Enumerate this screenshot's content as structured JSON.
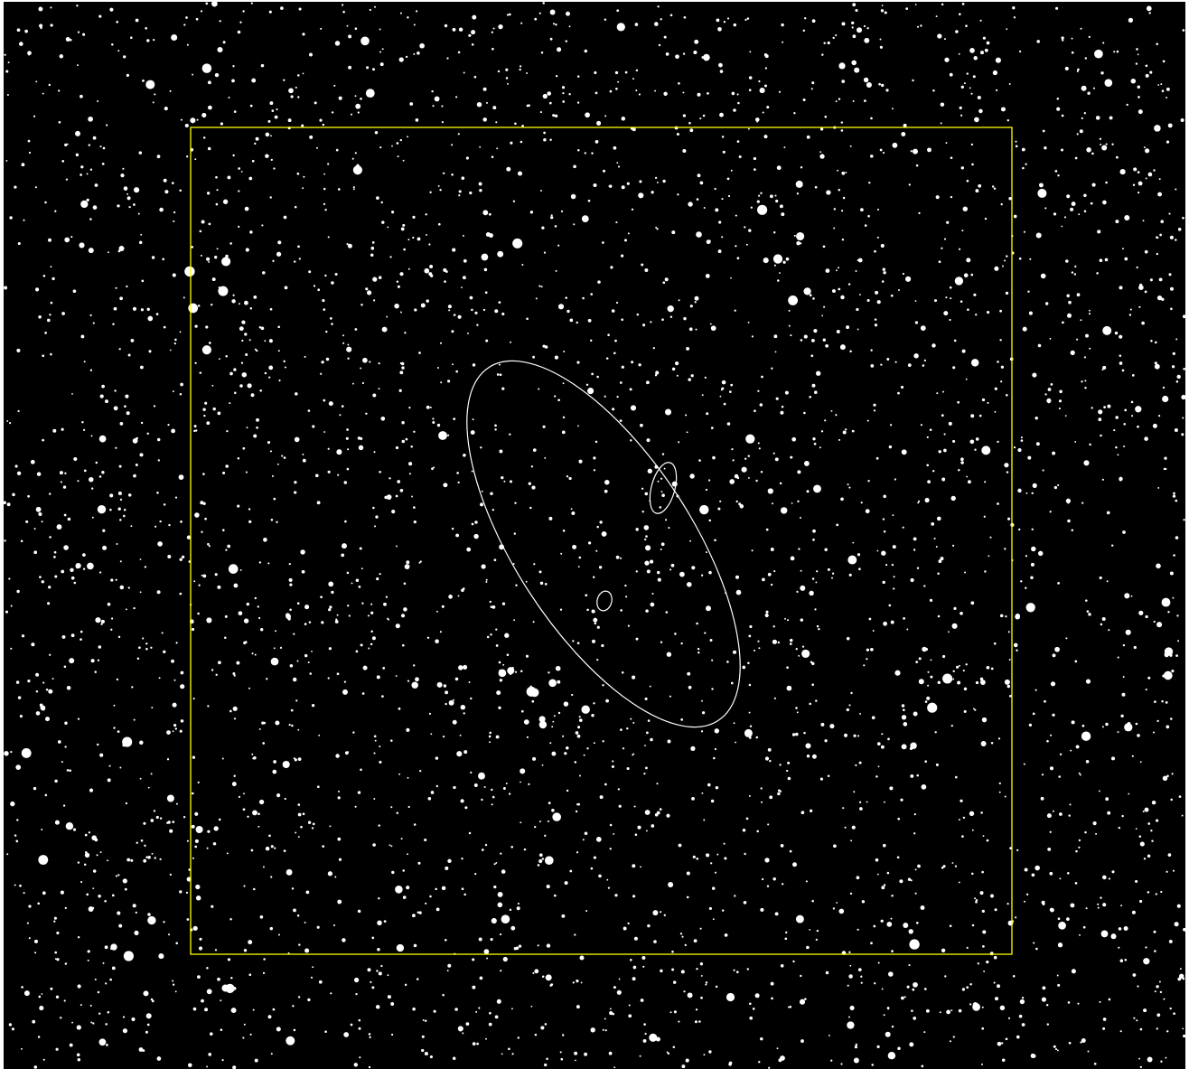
{
  "image": {
    "kind": "star field sky chart",
    "background_color": "#000000",
    "frame_color": "#ffffff",
    "star_color": "#ffffff",
    "field_of_view_box_color": "#ffff00",
    "galaxy_outline_color": "#ffffff",
    "shows_text": false
  },
  "overlays": [
    {
      "type": "field-of-view-rectangle",
      "label": ""
    },
    {
      "type": "galaxy-outline-large-ellipse",
      "label": ""
    },
    {
      "type": "galaxy-outline-small-ellipse",
      "label": ""
    },
    {
      "type": "galaxy-outline-tiny-ellipse",
      "label": ""
    }
  ]
}
